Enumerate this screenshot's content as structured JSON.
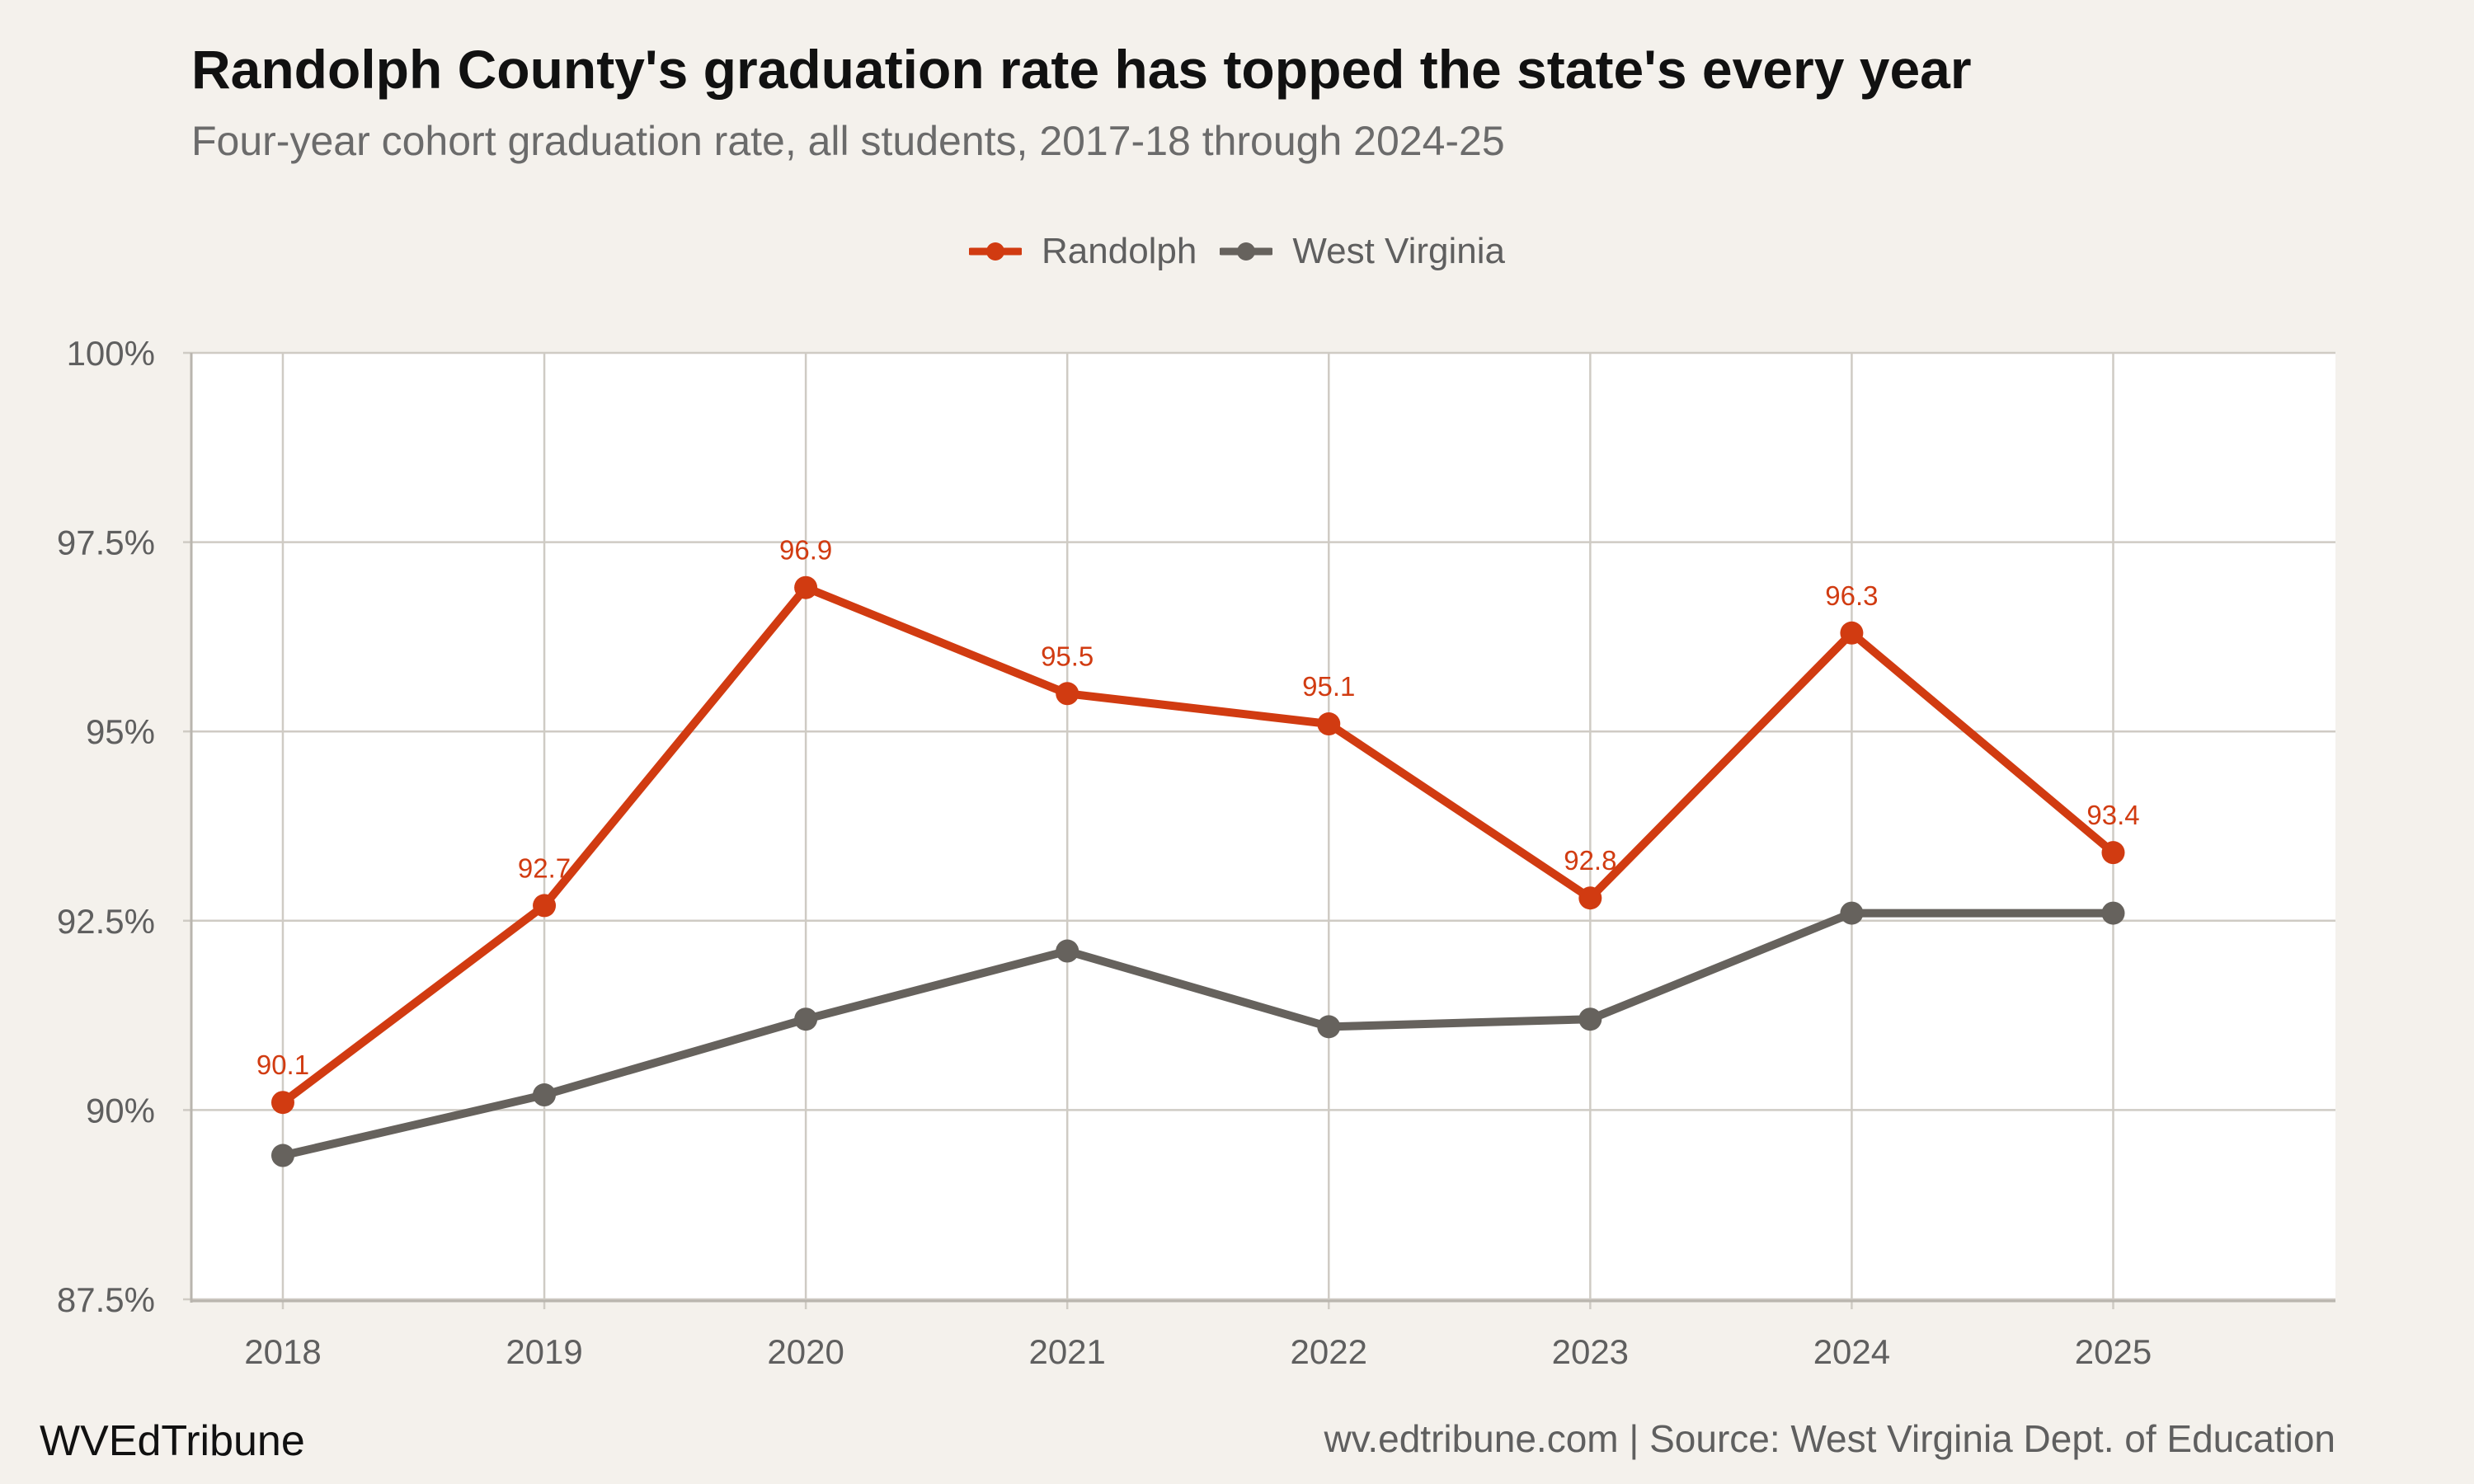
{
  "title": "Randolph County's graduation rate has topped the state's every year",
  "subtitle": "Four-year cohort graduation rate, all students, 2017-18 through 2024-25",
  "footer": {
    "brand": "WVEdTribune",
    "source": "wv.edtribune.com | Source: West Virginia Dept. of Education"
  },
  "colors": {
    "randolph": "#d13b11",
    "west_virginia": "#66625d",
    "panel": "#ffffff",
    "background": "#f4f1ec",
    "grid": "#cfcbc4"
  },
  "chart_data": {
    "type": "line",
    "x": [
      2018,
      2019,
      2020,
      2021,
      2022,
      2023,
      2024,
      2025
    ],
    "x_tick_labels": [
      "2018",
      "2019",
      "2020",
      "2021",
      "2022",
      "2023",
      "2024",
      "2025"
    ],
    "series": [
      {
        "name": "Randolph",
        "color": "#d13b11",
        "values": [
          90.1,
          92.7,
          96.9,
          95.5,
          95.1,
          92.8,
          96.3,
          93.4
        ],
        "data_labels": [
          "90.1",
          "92.7",
          "96.9",
          "95.5",
          "95.1",
          "92.8",
          "96.3",
          "93.4"
        ]
      },
      {
        "name": "West Virginia",
        "color": "#66625d",
        "values": [
          89.4,
          90.2,
          91.2,
          92.1,
          91.1,
          91.2,
          92.6,
          92.6
        ]
      }
    ],
    "ylim": [
      87.5,
      100
    ],
    "x_range": [
      2017.65,
      2025.85
    ],
    "y_ticks": [
      87.5,
      90,
      92.5,
      95,
      97.5,
      100
    ],
    "y_tick_labels": [
      "87.5%",
      "90%",
      "92.5%",
      "95%",
      "97.5%",
      "100%"
    ],
    "xlabel": "",
    "ylabel": "",
    "grid": true,
    "legend_position": "top"
  }
}
